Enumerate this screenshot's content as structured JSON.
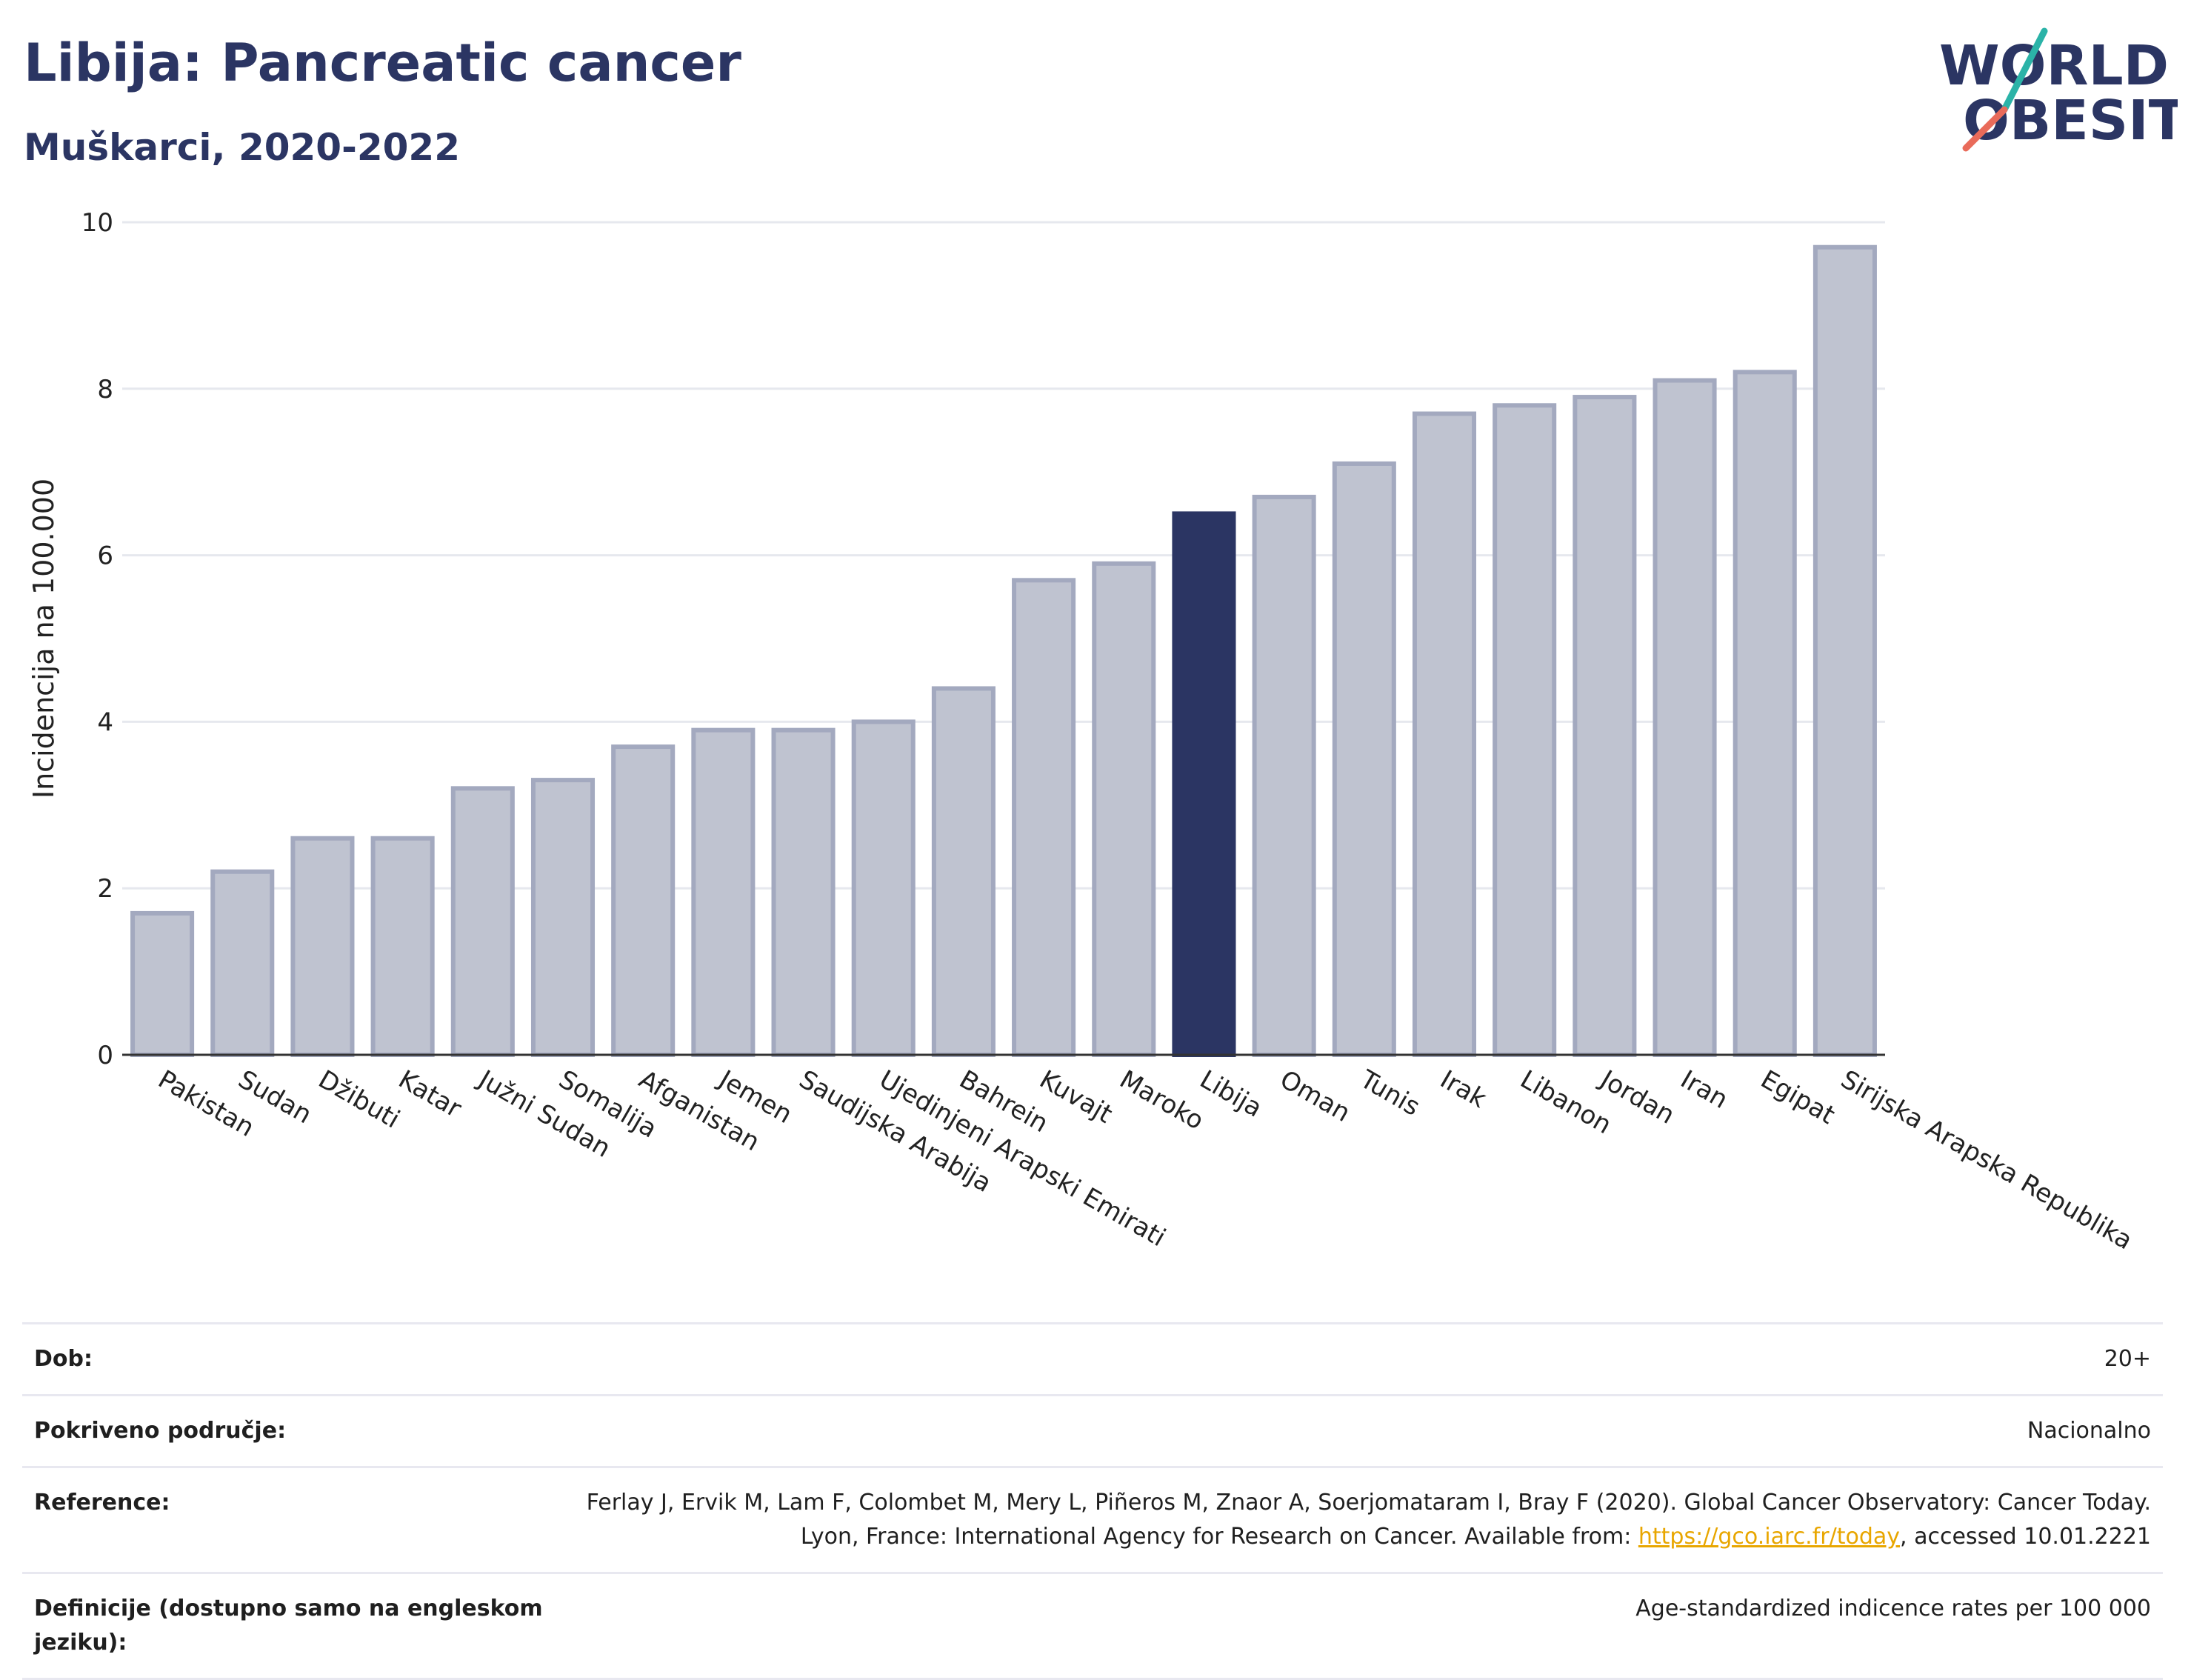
{
  "header": {
    "title": "Libija: Pancreatic cancer",
    "subtitle": "Muškarci, 2020-2022"
  },
  "logo": {
    "line1": "WORLD",
    "line2": "OBESITY"
  },
  "colors": {
    "highlight": "#2b3563",
    "bar_fill": "#bfc3d0",
    "bar_stroke": "#a3a9bf",
    "grid": "#e6e8ee",
    "logo_teal": "#2bb3a8",
    "logo_coral": "#e96b5a"
  },
  "chart_data": {
    "type": "bar",
    "ylabel": "Incidencija na 100.000",
    "ylim": [
      0,
      10
    ],
    "yticks": [
      0,
      2,
      4,
      6,
      8,
      10
    ],
    "highlight": "Libija",
    "categories": [
      "Pakistan",
      "Sudan",
      "Džibuti",
      "Katar",
      "Južni Sudan",
      "Somalija",
      "Afganistan",
      "Jemen",
      "Saudijska Arabija",
      "Ujedinjeni Arapski Emirati",
      "Bahrein",
      "Kuvajt",
      "Maroko",
      "Libija",
      "Oman",
      "Tunis",
      "Irak",
      "Libanon",
      "Jordan",
      "Iran",
      "Egipat",
      "Sirijska Arapska Republika"
    ],
    "values": [
      1.7,
      2.2,
      2.6,
      2.6,
      3.2,
      3.3,
      3.7,
      3.9,
      3.9,
      4.0,
      4.4,
      5.7,
      5.9,
      6.5,
      6.7,
      7.1,
      7.7,
      7.8,
      7.9,
      8.1,
      8.2,
      9.7
    ],
    "grid": true
  },
  "table": {
    "rows": [
      {
        "key": "Dob:",
        "value": "20+"
      },
      {
        "key": "Pokriveno područje:",
        "value": "Nacionalno"
      },
      {
        "key": "Reference:",
        "value_pre": "Ferlay J, Ervik M, Lam F, Colombet M, Mery L, Piñeros M, Znaor A, Soerjomataram I, Bray F (2020). Global Cancer Observatory: Cancer Today. Lyon, France: International Agency for Research on Cancer. Available from: ",
        "link": "https://gco.iarc.fr/today",
        "value_post": ", accessed 10.01.2221"
      },
      {
        "key": "Definicije (dostupno samo na engleskom jeziku):",
        "value": "Age-standardized indicence rates per 100 000"
      }
    ]
  }
}
